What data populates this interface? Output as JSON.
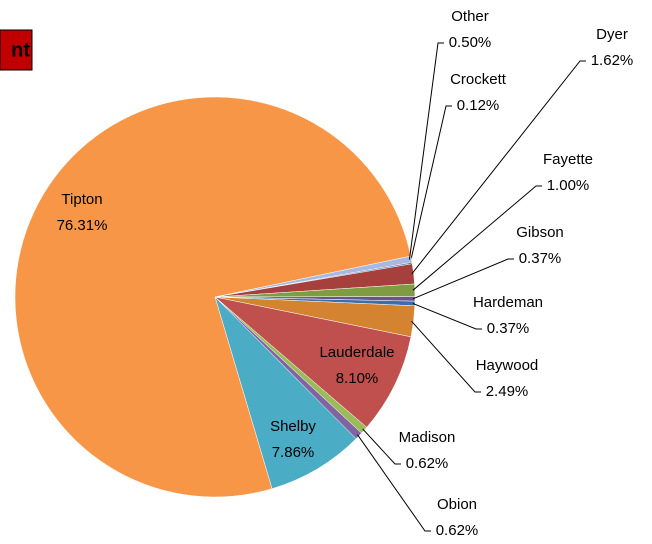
{
  "chart_data": {
    "type": "pie",
    "title": "nt",
    "categories": [
      "Crockett",
      "Dyer",
      "Fayette",
      "Gibson",
      "Hardeman",
      "Haywood",
      "Lauderdale",
      "Madison",
      "Obion",
      "Shelby",
      "Tipton",
      "Other"
    ],
    "values": [
      0.12,
      1.62,
      1.0,
      0.37,
      0.37,
      2.49,
      8.1,
      0.62,
      0.62,
      7.86,
      76.31,
      0.5
    ],
    "value_labels": [
      "0.12%",
      "1.62%",
      "1.00%",
      "0.37%",
      "0.37%",
      "2.49%",
      "8.10%",
      "0.62%",
      "0.62%",
      "7.86%",
      "76.31%",
      "0.50%"
    ],
    "colors": [
      "#4f81bd",
      "#a5403d",
      "#7f9c43",
      "#6a5290",
      "#3d6fa6",
      "#d48330",
      "#c0504d",
      "#9bbb59",
      "#8064a2",
      "#4bacc6",
      "#f79646",
      "#a7b9e1"
    ]
  }
}
